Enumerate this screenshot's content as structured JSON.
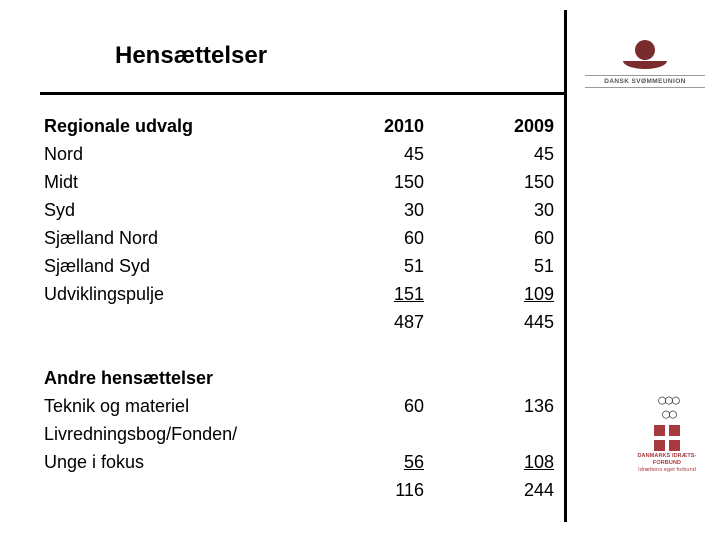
{
  "title": "Hensættelser",
  "logo_top": {
    "brand": "DANSK SVØMMEUNION",
    "color": "#7a2b2e"
  },
  "logo_bottom": {
    "org": "DANMARKS IDRÆTS-FORBUND",
    "sub": "Idrættens eget forbund",
    "flag_color": "#a63a3e"
  },
  "table": {
    "font_size_pt": 14,
    "text_color": "#000000",
    "background_color": "#ffffff",
    "rule_color": "#000000",
    "header": {
      "label": "Regionale udvalg",
      "col1": "2010",
      "col2": "2009"
    },
    "rows1": [
      {
        "label": "Nord",
        "c1": "45",
        "c2": "45"
      },
      {
        "label": "Midt",
        "c1": "150",
        "c2": "150"
      },
      {
        "label": "Syd",
        "c1": "30",
        "c2": "30"
      },
      {
        "label": "Sjælland Nord",
        "c1": "60",
        "c2": "60"
      },
      {
        "label": "Sjælland Syd",
        "c1": "51",
        "c2": "51"
      },
      {
        "label": "Udviklingspulje",
        "c1": "151",
        "c2": "109"
      }
    ],
    "subtotal1": {
      "label": "",
      "c1": "487",
      "c2": "445"
    },
    "section2_title": "Andre hensættelser",
    "rows2a": [
      {
        "label": "Teknik og materiel",
        "c1": "60",
        "c2": "136"
      }
    ],
    "rows2b_labels": [
      {
        "label": "Livredningsbog/Fonden/"
      }
    ],
    "rows2b_last": {
      "label": "Unge i fokus",
      "c1": " 56",
      "c2": " 108"
    },
    "subtotal2": {
      "label": "",
      "c1": "116",
      "c2": "244"
    }
  }
}
